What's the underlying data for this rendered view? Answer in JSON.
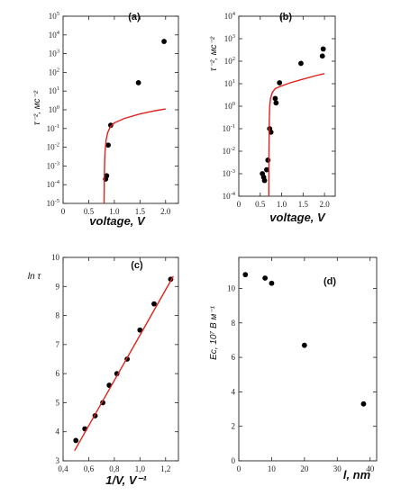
{
  "colors": {
    "marker": "#000000",
    "fit": "#e0201b",
    "axis": "#222222"
  },
  "chart_data": [
    {
      "id": "a",
      "type": "scatter",
      "panel_label": "(a)",
      "xlabel": "voltage, V",
      "ylabel": "τ⁻², мс⁻²",
      "xscale": "linear",
      "yscale": "log",
      "xlim": [
        0,
        2.25
      ],
      "ylim": [
        1e-05,
        100000.0
      ],
      "xticks": [
        0,
        0.5,
        1.0,
        1.5,
        2.0
      ],
      "xtick_labels": [
        "0",
        "0.5",
        "1.0",
        "1.5",
        "2.0"
      ],
      "yticks": [
        1e-05,
        0.0001,
        0.001,
        0.01,
        0.1,
        1,
        10,
        100,
        1000,
        10000,
        100000
      ],
      "ytick_labels": [
        [
          "10",
          "-5"
        ],
        [
          "10",
          "-4"
        ],
        [
          "10",
          "-3"
        ],
        [
          "10",
          "-2"
        ],
        [
          "10",
          "-1"
        ],
        [
          "10",
          "0"
        ],
        [
          "10",
          "1"
        ],
        [
          "10",
          "2"
        ],
        [
          "10",
          "3"
        ],
        [
          "10",
          "4"
        ],
        [
          "10",
          "5"
        ]
      ],
      "series": [
        {
          "kind": "points",
          "x": [
            0.83,
            0.85,
            0.88,
            0.93,
            1.47,
            1.97
          ],
          "y": [
            0.0002,
            0.0003,
            0.013,
            0.15,
            28,
            4500
          ]
        },
        {
          "kind": "fit",
          "x": [
            0.8,
            0.805,
            0.81,
            0.82,
            0.84,
            0.87,
            0.92,
            1.0,
            1.2,
            1.5,
            1.8,
            2.0
          ],
          "y": [
            1e-05,
            0.0003,
            0.0015,
            0.006,
            0.025,
            0.06,
            0.12,
            0.2,
            0.35,
            0.6,
            0.9,
            1.1
          ]
        }
      ]
    },
    {
      "id": "b",
      "type": "scatter",
      "panel_label": "(b)",
      "xlabel": "voltage, V",
      "ylabel": "τ⁻², мс⁻²",
      "xscale": "linear",
      "yscale": "log",
      "xlim": [
        0,
        2.25
      ],
      "ylim": [
        0.0001,
        10000.0
      ],
      "xticks": [
        0,
        0.5,
        1.0,
        1.5,
        2.0
      ],
      "xtick_labels": [
        "0",
        "0.5",
        "1.0",
        "1.5",
        "2.0"
      ],
      "yticks": [
        0.0001,
        0.001,
        0.01,
        0.1,
        1,
        10,
        100,
        1000,
        10000
      ],
      "ytick_labels": [
        [
          "10",
          "-4"
        ],
        [
          "10",
          "-3"
        ],
        [
          "10",
          "-2"
        ],
        [
          "10",
          "-1"
        ],
        [
          "10",
          "0"
        ],
        [
          "10",
          "1"
        ],
        [
          "10",
          "2"
        ],
        [
          "10",
          "3"
        ],
        [
          "10",
          "4"
        ]
      ],
      "series": [
        {
          "kind": "points",
          "x": [
            0.55,
            0.58,
            0.6,
            0.65,
            0.68,
            0.72,
            0.75,
            0.85,
            0.87,
            0.95,
            1.45,
            1.95,
            1.97
          ],
          "y": [
            0.001,
            0.0007,
            0.0005,
            0.0015,
            0.004,
            0.1,
            0.07,
            2.2,
            1.4,
            11,
            80,
            170,
            350
          ]
        },
        {
          "kind": "fit",
          "x": [
            0.7,
            0.705,
            0.71,
            0.72,
            0.74,
            0.78,
            0.85,
            1.0,
            1.2,
            1.5,
            1.8,
            2.0
          ],
          "y": [
            0.0001,
            0.01,
            0.2,
            0.9,
            2.2,
            4,
            6,
            8,
            11,
            16,
            23,
            28
          ]
        }
      ]
    },
    {
      "id": "c",
      "type": "scatter",
      "panel_label": "(c)",
      "xlabel": "1/V, V⁻¹",
      "ylabel": "ln τ",
      "xscale": "linear",
      "yscale": "linear",
      "xlim": [
        0.4,
        1.3
      ],
      "ylim": [
        3,
        10
      ],
      "xticks": [
        0.4,
        0.6,
        0.8,
        1.0,
        1.2
      ],
      "xtick_labels": [
        "0,4",
        "0,6",
        "0,8",
        "1,0",
        "1,2"
      ],
      "yticks": [
        3,
        4,
        5,
        6,
        7,
        8,
        9,
        10
      ],
      "ytick_labels": [
        [
          "3"
        ],
        [
          "4"
        ],
        [
          "5"
        ],
        [
          "6"
        ],
        [
          "7"
        ],
        [
          "8"
        ],
        [
          "9"
        ],
        [
          "10"
        ]
      ],
      "series": [
        {
          "kind": "points",
          "x": [
            0.5,
            0.57,
            0.65,
            0.71,
            0.76,
            0.82,
            0.9,
            1.0,
            1.11,
            1.24
          ],
          "y": [
            3.7,
            4.1,
            4.55,
            5.0,
            5.6,
            6.0,
            6.5,
            7.5,
            8.4,
            9.25
          ]
        },
        {
          "kind": "fit",
          "x": [
            0.49,
            1.26
          ],
          "y": [
            3.35,
            9.35
          ]
        }
      ]
    },
    {
      "id": "d",
      "type": "scatter",
      "panel_label": "(d)",
      "xlabel": "l,  nm",
      "ylabel": "Ec, 10⁷ В м⁻¹",
      "xscale": "linear",
      "yscale": "linear",
      "xlim": [
        0,
        42
      ],
      "ylim": [
        0,
        11.8
      ],
      "xticks": [
        0,
        10,
        20,
        30,
        40
      ],
      "xtick_labels": [
        "0",
        "10",
        "20",
        "30",
        "40"
      ],
      "yticks": [
        0,
        2,
        4,
        6,
        8,
        10
      ],
      "ytick_labels": [
        [
          "0"
        ],
        [
          "2"
        ],
        [
          "4"
        ],
        [
          "6"
        ],
        [
          "8"
        ],
        [
          "10"
        ]
      ],
      "series": [
        {
          "kind": "points",
          "x": [
            2,
            8,
            10,
            20,
            38
          ],
          "y": [
            10.8,
            10.6,
            10.3,
            6.7,
            3.3
          ]
        }
      ]
    }
  ]
}
